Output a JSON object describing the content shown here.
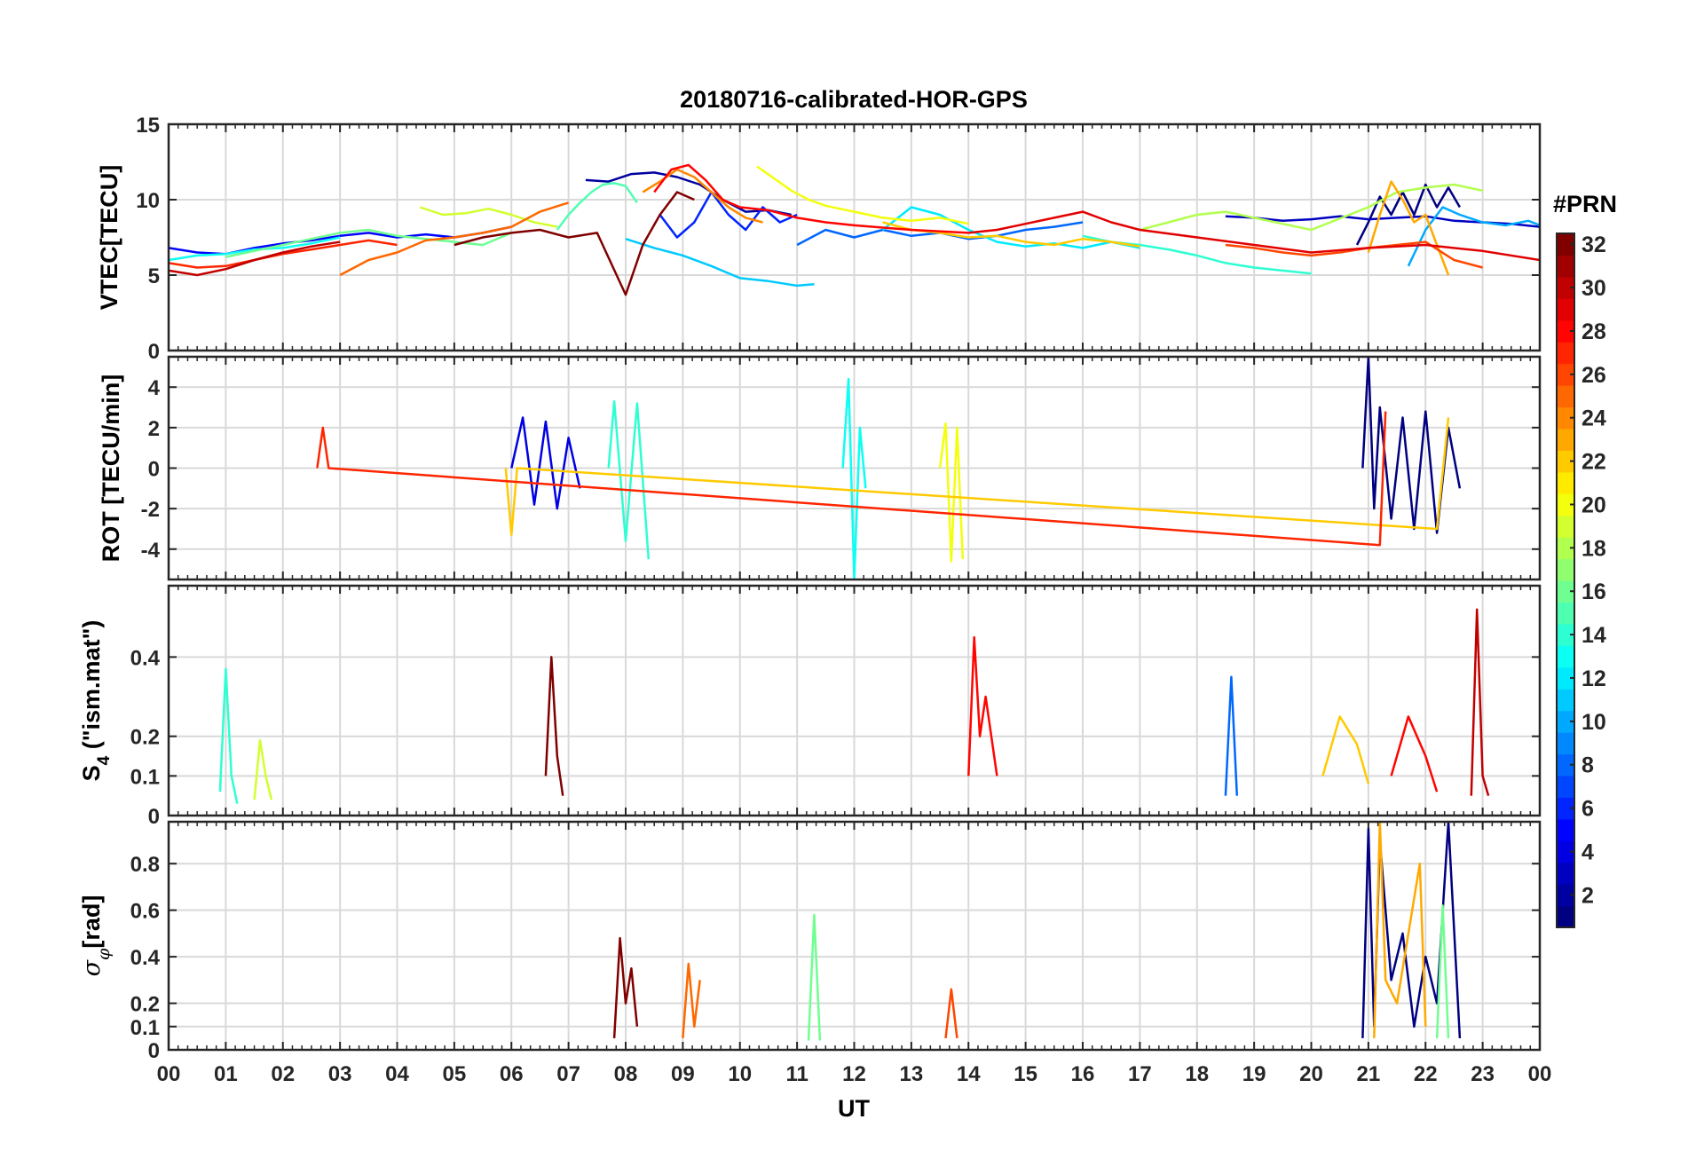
{
  "title": "20180716-calibrated-HOR-GPS",
  "xlabel": "UT",
  "x_tick_labels": [
    "00",
    "01",
    "02",
    "03",
    "04",
    "05",
    "06",
    "07",
    "08",
    "09",
    "10",
    "11",
    "12",
    "13",
    "14",
    "15",
    "16",
    "17",
    "18",
    "19",
    "20",
    "21",
    "22",
    "23",
    "00"
  ],
  "colorbar": {
    "label": "#PRN",
    "ticks": [
      "2",
      "4",
      "6",
      "8",
      "10",
      "12",
      "14",
      "16",
      "18",
      "20",
      "22",
      "24",
      "26",
      "28",
      "30",
      "32"
    ],
    "range": [
      1,
      32
    ]
  },
  "chart_data": [
    {
      "type": "line",
      "id": "vtec",
      "ylabel": "VTEC[TECU]",
      "ylim": [
        0,
        15
      ],
      "y_ticks": [
        "0",
        "5",
        "10",
        "15"
      ],
      "grid": true,
      "series": [
        {
          "prn": 1,
          "x": [
            20.8,
            21.0,
            21.2,
            21.4,
            21.6,
            21.8,
            22.0,
            22.2,
            22.4,
            22.6
          ],
          "y": [
            7.0,
            8.5,
            10.2,
            9.0,
            10.5,
            9.0,
            11.0,
            9.5,
            10.8,
            9.5
          ]
        },
        {
          "prn": 2,
          "x": [
            7.3,
            7.7,
            8.1,
            8.5,
            8.9,
            9.3,
            9.7,
            10.1,
            10.5,
            10.9
          ],
          "y": [
            11.3,
            11.2,
            11.7,
            11.8,
            11.5,
            11.0,
            10.0,
            9.2,
            9.3,
            9.0
          ]
        },
        {
          "prn": 3,
          "x": [
            18.5,
            19.0,
            19.5,
            20.0,
            20.5,
            21.0,
            21.5,
            22.0,
            22.5,
            23.0,
            23.5,
            24.0
          ],
          "y": [
            8.9,
            8.8,
            8.6,
            8.7,
            8.9,
            8.7,
            8.8,
            8.9,
            8.6,
            8.5,
            8.4,
            8.2
          ]
        },
        {
          "prn": 5,
          "x": [
            0.0,
            0.5,
            1.0,
            1.5,
            2.0,
            2.5,
            3.0,
            3.5,
            4.0,
            4.5,
            5.0,
            5.5,
            6.0
          ],
          "y": [
            6.8,
            6.5,
            6.4,
            6.8,
            7.1,
            7.3,
            7.6,
            7.8,
            7.5,
            7.7,
            7.5,
            7.8,
            8.2
          ]
        },
        {
          "prn": 6,
          "x": [
            8.6,
            8.9,
            9.2,
            9.5,
            9.8,
            10.1,
            10.4,
            10.7,
            11.0
          ],
          "y": [
            9.0,
            7.5,
            8.5,
            10.5,
            9.0,
            8.0,
            9.5,
            8.5,
            9.0
          ]
        },
        {
          "prn": 8,
          "x": [
            11.0,
            11.5,
            12.0,
            12.5,
            13.0,
            13.5,
            14.0,
            14.5,
            15.0,
            15.5,
            16.0
          ],
          "y": [
            7.0,
            8.0,
            7.5,
            8.0,
            7.6,
            7.8,
            7.4,
            7.6,
            8.0,
            8.2,
            8.5
          ]
        },
        {
          "prn": 10,
          "x": [
            21.7,
            22.0,
            22.3,
            22.6,
            23.0,
            23.4,
            23.8,
            24.0
          ],
          "y": [
            5.6,
            8.0,
            9.5,
            9.0,
            8.5,
            8.3,
            8.6,
            8.3
          ]
        },
        {
          "prn": 11,
          "x": [
            8.0,
            8.5,
            9.0,
            9.5,
            10.0,
            10.5,
            11.0,
            11.3
          ],
          "y": [
            7.4,
            6.8,
            6.3,
            5.6,
            4.8,
            4.6,
            4.3,
            4.4
          ]
        },
        {
          "prn": 12,
          "x": [
            12.5,
            13.0,
            13.5,
            14.0,
            14.5,
            15.0,
            15.5,
            16.0,
            16.5,
            17.0
          ],
          "y": [
            8.0,
            9.5,
            9.0,
            8.0,
            7.2,
            6.9,
            7.1,
            6.8,
            7.2,
            6.8
          ]
        },
        {
          "prn": 13,
          "x": [
            0.0,
            0.5,
            1.0,
            1.5,
            2.0,
            2.5,
            3.0
          ],
          "y": [
            6.0,
            6.3,
            6.4,
            6.7,
            6.8,
            7.1,
            7.5
          ]
        },
        {
          "prn": 14,
          "x": [
            16.0,
            16.5,
            17.0,
            17.5,
            18.0,
            18.5,
            19.0,
            19.5,
            20.0
          ],
          "y": [
            7.6,
            7.2,
            7.0,
            6.7,
            6.3,
            5.8,
            5.5,
            5.3,
            5.1
          ]
        },
        {
          "prn": 15,
          "x": [
            6.8,
            7.0,
            7.2,
            7.4,
            7.6,
            7.8,
            8.0,
            8.2
          ],
          "y": [
            8.0,
            9.0,
            9.8,
            10.5,
            11.0,
            11.1,
            10.9,
            9.8
          ]
        },
        {
          "prn": 16,
          "x": [
            1.0,
            1.5,
            2.0,
            2.5,
            3.0,
            3.5,
            4.0,
            4.5,
            5.0,
            5.5,
            6.0
          ],
          "y": [
            6.2,
            6.6,
            7.0,
            7.4,
            7.8,
            8.0,
            7.6,
            7.4,
            7.2,
            7.0,
            7.8
          ]
        },
        {
          "prn": 18,
          "x": [
            17.0,
            17.5,
            18.0,
            18.5,
            19.0,
            19.5,
            20.0,
            21.0,
            21.5,
            22.0,
            22.5,
            23.0
          ],
          "y": [
            8.0,
            8.5,
            9.0,
            9.2,
            8.8,
            8.4,
            8.0,
            9.5,
            10.5,
            10.8,
            11.0,
            10.6
          ]
        },
        {
          "prn": 19,
          "x": [
            4.4,
            4.8,
            5.2,
            5.6,
            6.0,
            6.4,
            6.8
          ],
          "y": [
            9.5,
            9.0,
            9.1,
            9.4,
            9.0,
            8.5,
            8.2
          ]
        },
        {
          "prn": 20,
          "x": [
            10.3,
            10.6,
            10.9,
            11.2,
            11.5,
            12.0,
            12.5,
            13.0,
            13.5,
            14.0
          ],
          "y": [
            12.2,
            11.4,
            10.6,
            10.0,
            9.6,
            9.2,
            8.8,
            8.6,
            8.8,
            8.4
          ]
        },
        {
          "prn": 22,
          "x": [
            12.5,
            13.0,
            13.5,
            14.0,
            14.5,
            15.0,
            15.5,
            16.0,
            16.5,
            17.0
          ],
          "y": [
            8.5,
            8.0,
            7.8,
            7.5,
            7.6,
            7.2,
            7.0,
            7.4,
            7.2,
            6.9
          ]
        },
        {
          "prn": 23,
          "x": [
            21.0,
            21.2,
            21.4,
            21.6,
            21.8,
            22.0,
            22.2,
            22.4
          ],
          "y": [
            6.5,
            9.0,
            11.2,
            10.0,
            8.5,
            9.0,
            7.0,
            5.0
          ]
        },
        {
          "prn": 24,
          "x": [
            8.3,
            8.6,
            8.9,
            9.2,
            9.5,
            9.8,
            10.1,
            10.4
          ],
          "y": [
            10.5,
            11.2,
            12.0,
            11.5,
            10.5,
            9.5,
            8.8,
            8.5
          ]
        },
        {
          "prn": 25,
          "x": [
            3.0,
            3.5,
            4.0,
            4.5,
            5.0,
            5.5,
            6.0,
            6.5,
            7.0
          ],
          "y": [
            5.0,
            6.0,
            6.5,
            7.3,
            7.5,
            7.8,
            8.2,
            9.2,
            9.8
          ]
        },
        {
          "prn": 26,
          "x": [
            18.5,
            19.0,
            19.5,
            20.0,
            20.5,
            21.0,
            21.5,
            22.0,
            22.5,
            23.0
          ],
          "y": [
            7.0,
            6.8,
            6.5,
            6.3,
            6.5,
            6.8,
            7.0,
            7.2,
            6.0,
            5.5
          ]
        },
        {
          "prn": 27,
          "x": [
            0.0,
            0.5,
            1.0,
            1.5,
            2.0,
            2.5,
            3.0,
            3.5,
            4.0
          ],
          "y": [
            5.8,
            5.5,
            5.6,
            6.0,
            6.4,
            6.7,
            7.0,
            7.3,
            7.0
          ]
        },
        {
          "prn": 28,
          "x": [
            8.5,
            8.8,
            9.1,
            9.4,
            9.7,
            10.0,
            10.5,
            11.0,
            11.5,
            12.0,
            13.0,
            14.0
          ],
          "y": [
            10.5,
            12.0,
            12.3,
            11.3,
            10.0,
            9.5,
            9.3,
            8.8,
            8.5,
            8.3,
            8.0,
            7.8
          ]
        },
        {
          "prn": 29,
          "x": [
            14.0,
            14.5,
            15.0,
            15.5,
            16.0,
            16.5,
            17.0,
            18.0,
            19.0,
            20.0,
            21.0,
            22.0,
            23.0,
            24.0
          ],
          "y": [
            7.8,
            8.0,
            8.4,
            8.8,
            9.2,
            8.5,
            8.0,
            7.5,
            7.0,
            6.5,
            6.8,
            7.0,
            6.6,
            6.0
          ]
        },
        {
          "prn": 30,
          "x": [
            0.0,
            0.5,
            1.0,
            1.5,
            2.0,
            2.5,
            3.0
          ],
          "y": [
            5.3,
            5.0,
            5.4,
            6.0,
            6.5,
            6.9,
            7.2
          ]
        },
        {
          "prn": 32,
          "x": [
            5.0,
            5.5,
            6.0,
            6.5,
            7.0,
            7.5,
            8.0,
            8.3,
            8.6,
            8.9,
            9.2
          ],
          "y": [
            7.0,
            7.5,
            7.8,
            8.0,
            7.5,
            7.8,
            3.7,
            7.0,
            9.0,
            10.5,
            10.0
          ]
        }
      ]
    },
    {
      "type": "line",
      "id": "rot",
      "ylabel": "ROT [TECU/min]",
      "ylim": [
        -5.5,
        5.5
      ],
      "y_ticks": [
        "-4",
        "-2",
        "0",
        "2",
        "4"
      ],
      "grid": true,
      "series": [
        {
          "prn": 1,
          "x": [
            20.9,
            21.0,
            21.1,
            21.2,
            21.4,
            21.6,
            21.8,
            22.0,
            22.2,
            22.4,
            22.6
          ],
          "y": [
            0.0,
            5.5,
            -2.0,
            3.0,
            -2.5,
            2.5,
            -3.0,
            2.8,
            -3.2,
            2.0,
            -1.0
          ]
        },
        {
          "prn": 4,
          "x": [
            6.0,
            6.2,
            6.4,
            6.6,
            6.8,
            7.0,
            7.2
          ],
          "y": [
            0.0,
            2.5,
            -1.8,
            2.3,
            -2.0,
            1.5,
            -1.0
          ]
        },
        {
          "prn": 13,
          "x": [
            11.8,
            11.9,
            12.0,
            12.1,
            12.2
          ],
          "y": [
            0.0,
            4.4,
            -5.5,
            2.0,
            -1.0
          ]
        },
        {
          "prn": 14,
          "x": [
            7.7,
            7.8,
            8.0,
            8.2,
            8.4
          ],
          "y": [
            0.0,
            3.3,
            -3.6,
            3.2,
            -4.5
          ]
        },
        {
          "prn": 20,
          "x": [
            13.5,
            13.6,
            13.7,
            13.8,
            13.9
          ],
          "y": [
            0.0,
            2.2,
            -4.6,
            2.0,
            -4.5
          ]
        },
        {
          "prn": 22,
          "x": [
            5.9,
            6.0,
            6.1,
            22.2,
            22.4
          ],
          "y": [
            0.0,
            -3.3,
            0.0,
            -3.0,
            2.5
          ]
        },
        {
          "prn": 27,
          "x": [
            2.6,
            2.7,
            2.8,
            21.2,
            21.3
          ],
          "y": [
            0.0,
            2.0,
            0.0,
            -3.8,
            2.8
          ]
        }
      ]
    },
    {
      "type": "line",
      "id": "s4",
      "ylabel": "S4 (\"ism.mat\")",
      "ylim": [
        0,
        0.58
      ],
      "y_ticks": [
        "0",
        "0.1",
        "0.2",
        "0.4"
      ],
      "grid": true,
      "series": [
        {
          "prn": 14,
          "x": [
            0.9,
            1.0,
            1.1,
            1.2
          ],
          "y": [
            0.06,
            0.37,
            0.1,
            0.03
          ]
        },
        {
          "prn": 19,
          "x": [
            1.5,
            1.6,
            1.7,
            1.8
          ],
          "y": [
            0.04,
            0.19,
            0.1,
            0.04
          ]
        },
        {
          "prn": 32,
          "x": [
            6.6,
            6.7,
            6.8,
            6.9
          ],
          "y": [
            0.1,
            0.4,
            0.15,
            0.05
          ]
        },
        {
          "prn": 28,
          "x": [
            14.0,
            14.1,
            14.2,
            14.3,
            14.5
          ],
          "y": [
            0.1,
            0.45,
            0.2,
            0.3,
            0.1
          ]
        },
        {
          "prn": 30,
          "x": [
            22.8,
            22.9,
            23.0,
            23.1
          ],
          "y": [
            0.05,
            0.52,
            0.1,
            0.05
          ]
        },
        {
          "prn": 8,
          "x": [
            18.5,
            18.6,
            18.7
          ],
          "y": [
            0.05,
            0.35,
            0.05
          ]
        },
        {
          "prn": 22,
          "x": [
            20.2,
            20.5,
            20.8,
            21.0
          ],
          "y": [
            0.1,
            0.25,
            0.18,
            0.08
          ]
        },
        {
          "prn": 28,
          "x": [
            21.4,
            21.7,
            22.0,
            22.2
          ],
          "y": [
            0.1,
            0.25,
            0.15,
            0.06
          ]
        }
      ]
    },
    {
      "type": "line",
      "id": "sigma_phi",
      "ylabel": "σφ[rad]",
      "ylim": [
        0,
        0.98
      ],
      "y_ticks": [
        "0",
        "0.1",
        "0.2",
        "0.4",
        "0.6",
        "0.8"
      ],
      "grid": true,
      "series": [
        {
          "prn": 32,
          "x": [
            7.8,
            7.9,
            8.0,
            8.1,
            8.2
          ],
          "y": [
            0.05,
            0.48,
            0.2,
            0.35,
            0.1
          ]
        },
        {
          "prn": 25,
          "x": [
            9.0,
            9.1,
            9.2,
            9.3
          ],
          "y": [
            0.05,
            0.37,
            0.1,
            0.3
          ]
        },
        {
          "prn": 16,
          "x": [
            11.2,
            11.3,
            11.4
          ],
          "y": [
            0.04,
            0.58,
            0.04
          ]
        },
        {
          "prn": 1,
          "x": [
            20.9,
            21.0,
            21.1,
            21.2,
            21.4,
            21.6,
            21.8,
            22.0,
            22.2,
            22.4,
            22.6
          ],
          "y": [
            0.05,
            0.95,
            0.1,
            0.9,
            0.3,
            0.5,
            0.1,
            0.4,
            0.2,
            0.98,
            0.05
          ]
        },
        {
          "prn": 23,
          "x": [
            21.1,
            21.2,
            21.3,
            21.5,
            21.9,
            22.0
          ],
          "y": [
            0.05,
            0.98,
            0.3,
            0.2,
            0.8,
            0.1
          ]
        },
        {
          "prn": 16,
          "x": [
            22.2,
            22.3,
            22.4
          ],
          "y": [
            0.05,
            0.62,
            0.05
          ]
        },
        {
          "prn": 26,
          "x": [
            13.6,
            13.7,
            13.8
          ],
          "y": [
            0.05,
            0.26,
            0.05
          ]
        }
      ]
    }
  ]
}
